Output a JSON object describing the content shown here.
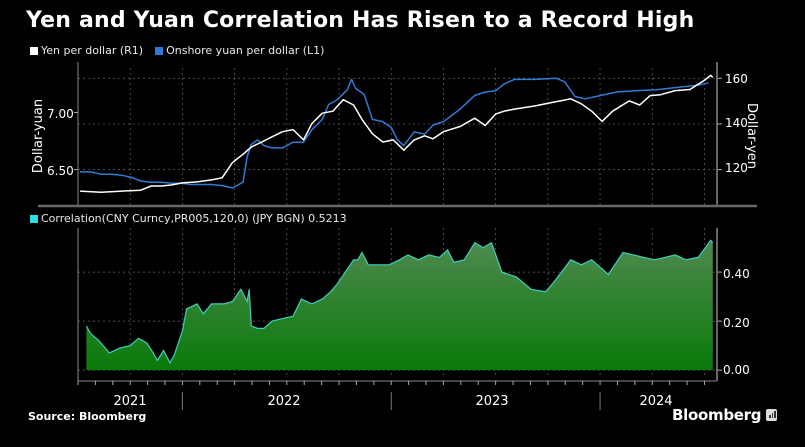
{
  "title": "Yen and Yuan Correlation Has Risen to a Record High",
  "source": "Source: Bloomberg",
  "brand": "Bloomberg",
  "colors": {
    "yen": "#ffffff",
    "yuan": "#2f7bd6",
    "corr_fill_top": "#4a8a4a",
    "corr_fill_bottom": "#0a7a0a",
    "corr_line": "#3fd0c0",
    "corr_legend": "#29e0e0"
  },
  "chart_data": [
    {
      "type": "line",
      "title": "",
      "legend_placement": "top-left",
      "legend": [
        {
          "name": "Yen per dollar (R1)",
          "color": "#ffffff"
        },
        {
          "name": "Onshore yuan per dollar (L1)",
          "color": "#2f7bd6"
        }
      ],
      "left_axis": {
        "label": "Dollar-yuan",
        "ticks": [
          "6.50",
          "7.00"
        ],
        "tick_values": [
          6.5,
          7.0
        ],
        "range": [
          6.19,
          7.39
        ]
      },
      "right_axis": {
        "label": "Dollar-yen",
        "ticks": [
          "120",
          "140",
          "160"
        ],
        "tick_values": [
          120,
          140,
          160
        ],
        "range": [
          104.5,
          164.5
        ]
      },
      "x_range": [
        2021.5,
        2024.56
      ],
      "x_labels": [
        "2021",
        "2022",
        "2023",
        "2024"
      ],
      "x_label_positions": [
        2021.75,
        2022.5,
        2023.5,
        2024.28
      ],
      "year_boundaries": [
        2022,
        2023,
        2024
      ],
      "grid": true,
      "series": [
        {
          "name": "Onshore yuan per dollar",
          "axis": "left",
          "x": [
            2021.51,
            2021.56,
            2021.61,
            2021.66,
            2021.71,
            2021.76,
            2021.8,
            2021.85,
            2021.9,
            2021.95,
            2022.0,
            2022.04,
            2022.09,
            2022.14,
            2022.19,
            2022.24,
            2022.29,
            2022.31,
            2022.33,
            2022.36,
            2022.39,
            2022.43,
            2022.48,
            2022.53,
            2022.58,
            2022.62,
            2022.67,
            2022.7,
            2022.74,
            2022.79,
            2022.81,
            2022.83,
            2022.87,
            2022.91,
            2022.96,
            2023.0,
            2023.03,
            2023.06,
            2023.11,
            2023.16,
            2023.2,
            2023.25,
            2023.33,
            2023.4,
            2023.45,
            2023.5,
            2023.54,
            2023.59,
            2023.69,
            2023.79,
            2023.83,
            2023.88,
            2023.93,
            2023.98,
            2024.08,
            2024.17,
            2024.27,
            2024.37,
            2024.47,
            2024.52
          ],
          "values": [
            6.48,
            6.48,
            6.46,
            6.46,
            6.45,
            6.43,
            6.4,
            6.39,
            6.39,
            6.38,
            6.38,
            6.37,
            6.37,
            6.37,
            6.36,
            6.34,
            6.39,
            6.61,
            6.72,
            6.76,
            6.71,
            6.69,
            6.69,
            6.74,
            6.74,
            6.85,
            6.94,
            7.07,
            7.11,
            7.2,
            7.29,
            7.21,
            7.16,
            6.94,
            6.92,
            6.87,
            6.76,
            6.71,
            6.83,
            6.81,
            6.89,
            6.92,
            7.03,
            7.15,
            7.18,
            7.19,
            7.25,
            7.29,
            7.29,
            7.3,
            7.27,
            7.14,
            7.12,
            7.14,
            7.18,
            7.19,
            7.2,
            7.22,
            7.24,
            7.26
          ]
        },
        {
          "name": "Yen per dollar",
          "axis": "right",
          "x": [
            2021.51,
            2021.61,
            2021.71,
            2021.8,
            2021.85,
            2021.9,
            2021.95,
            2022.0,
            2022.07,
            2022.14,
            2022.19,
            2022.24,
            2022.29,
            2022.33,
            2022.38,
            2022.43,
            2022.48,
            2022.53,
            2022.58,
            2022.62,
            2022.67,
            2022.72,
            2022.77,
            2022.82,
            2022.86,
            2022.91,
            2022.96,
            2023.01,
            2023.06,
            2023.11,
            2023.16,
            2023.2,
            2023.25,
            2023.33,
            2023.4,
            2023.45,
            2023.5,
            2023.54,
            2023.59,
            2023.69,
            2023.76,
            2023.81,
            2023.86,
            2023.91,
            2023.96,
            2024.01,
            2024.06,
            2024.14,
            2024.19,
            2024.24,
            2024.29,
            2024.36,
            2024.43,
            2024.5,
            2024.53,
            2024.54
          ],
          "values": [
            110.6,
            110.1,
            110.6,
            111.0,
            112.8,
            112.8,
            113.3,
            114.2,
            114.6,
            115.5,
            116.4,
            123.1,
            126.7,
            129.9,
            132.1,
            134.4,
            136.6,
            137.5,
            133.0,
            140.2,
            144.7,
            145.6,
            150.6,
            148.3,
            142.0,
            135.7,
            132.1,
            133.0,
            128.5,
            133.0,
            134.8,
            133.5,
            136.6,
            138.9,
            142.5,
            139.3,
            144.3,
            145.6,
            146.5,
            147.9,
            149.2,
            150.1,
            151.0,
            148.8,
            145.6,
            141.1,
            145.6,
            150.1,
            148.3,
            152.4,
            152.8,
            154.6,
            155.1,
            159.1,
            161.3,
            160.4
          ]
        }
      ]
    },
    {
      "type": "area",
      "title": "",
      "legend_placement": "top-left",
      "legend": [
        {
          "name": "Correlation(CNY Curncy,PR005,120,0) (JPY BGN) 0.5213",
          "color": "#29e0e0"
        }
      ],
      "right_axis": {
        "ticks": [
          "0.00",
          "0.20",
          "0.40"
        ],
        "tick_values": [
          0.0,
          0.2,
          0.4
        ],
        "range": [
          -0.02,
          0.58
        ]
      },
      "x_range": [
        2021.5,
        2024.56
      ],
      "grid": true,
      "series": [
        {
          "name": "Correlation(CNY Curncy,PR005,120,0) (JPY BGN)",
          "last_value": 0.5213,
          "x": [
            2021.54,
            2021.56,
            2021.6,
            2021.65,
            2021.7,
            2021.75,
            2021.79,
            2021.83,
            2021.86,
            2021.88,
            2021.91,
            2021.94,
            2021.96,
            2022.0,
            2022.02,
            2022.07,
            2022.1,
            2022.14,
            2022.2,
            2022.24,
            2022.28,
            2022.31,
            2022.32,
            2022.33,
            2022.36,
            2022.39,
            2022.43,
            2022.48,
            2022.53,
            2022.57,
            2022.62,
            2022.67,
            2022.71,
            2022.74,
            2022.82,
            2022.84,
            2022.86,
            2022.89,
            2022.94,
            2022.99,
            2023.04,
            2023.08,
            2023.13,
            2023.18,
            2023.23,
            2023.27,
            2023.3,
            2023.35,
            2023.4,
            2023.44,
            2023.48,
            2023.53,
            2023.6,
            2023.67,
            2023.74,
            2023.78,
            2023.86,
            2023.91,
            2023.96,
            2024.04,
            2024.11,
            2024.16,
            2024.21,
            2024.26,
            2024.31,
            2024.36,
            2024.41,
            2024.47,
            2024.53,
            2024.54
          ],
          "values": [
            0.18,
            0.15,
            0.12,
            0.07,
            0.09,
            0.1,
            0.13,
            0.11,
            0.07,
            0.04,
            0.08,
            0.03,
            0.06,
            0.16,
            0.25,
            0.27,
            0.23,
            0.27,
            0.27,
            0.28,
            0.33,
            0.28,
            0.33,
            0.18,
            0.17,
            0.17,
            0.2,
            0.21,
            0.22,
            0.29,
            0.27,
            0.29,
            0.32,
            0.35,
            0.45,
            0.45,
            0.48,
            0.43,
            0.43,
            0.43,
            0.45,
            0.47,
            0.45,
            0.47,
            0.46,
            0.49,
            0.44,
            0.45,
            0.52,
            0.5,
            0.52,
            0.4,
            0.38,
            0.33,
            0.32,
            0.36,
            0.45,
            0.43,
            0.45,
            0.39,
            0.48,
            0.47,
            0.46,
            0.45,
            0.46,
            0.47,
            0.45,
            0.46,
            0.53,
            0.52
          ]
        }
      ]
    }
  ]
}
